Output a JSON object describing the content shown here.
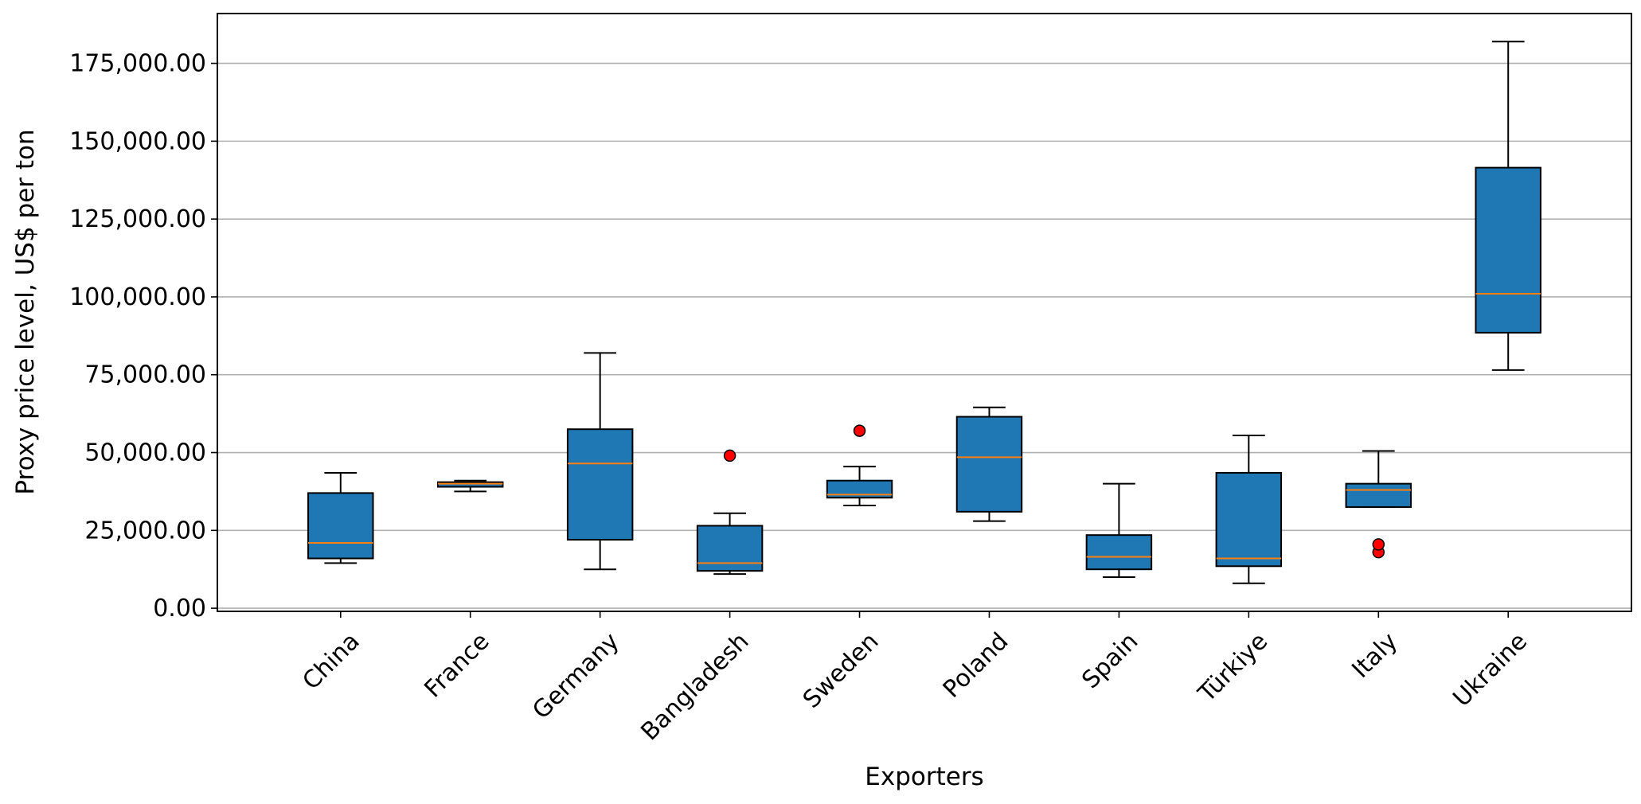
{
  "chart_data": {
    "type": "box",
    "title": "",
    "xlabel": "Exporters",
    "ylabel": "Proxy price level, US$ per ton",
    "ylim": [
      -1000,
      191000
    ],
    "yticks": [
      0,
      25000,
      50000,
      75000,
      100000,
      125000,
      150000,
      175000
    ],
    "ytick_labels": [
      "0.00",
      "25,000.00",
      "50,000.00",
      "75,000.00",
      "100,000.00",
      "125,000.00",
      "150,000.00",
      "175,000.00"
    ],
    "grid": "horizontal",
    "categories": [
      "China",
      "France",
      "Germany",
      "Bangladesh",
      "Sweden",
      "Poland",
      "Spain",
      "Türkiye",
      "Italy",
      "Ukraine"
    ],
    "box_color": "#1f77b4",
    "median_color": "#ff7f0e",
    "outlier_color": "#ff0000",
    "boxes": [
      {
        "whisker_low": 14500,
        "q1": 16000,
        "median": 21000,
        "q3": 37000,
        "whisker_high": 43500,
        "outliers": []
      },
      {
        "whisker_low": 37500,
        "q1": 39000,
        "median": 40000,
        "q3": 40500,
        "whisker_high": 41000,
        "outliers": []
      },
      {
        "whisker_low": 12500,
        "q1": 22000,
        "median": 46500,
        "q3": 57500,
        "whisker_high": 82000,
        "outliers": []
      },
      {
        "whisker_low": 11000,
        "q1": 12000,
        "median": 14500,
        "q3": 26500,
        "whisker_high": 30500,
        "outliers": [
          49000
        ]
      },
      {
        "whisker_low": 33000,
        "q1": 35500,
        "median": 36500,
        "q3": 41000,
        "whisker_high": 45500,
        "outliers": [
          57000
        ]
      },
      {
        "whisker_low": 28000,
        "q1": 31000,
        "median": 48500,
        "q3": 61500,
        "whisker_high": 64500,
        "outliers": []
      },
      {
        "whisker_low": 10000,
        "q1": 12500,
        "median": 16500,
        "q3": 23500,
        "whisker_high": 40000,
        "outliers": []
      },
      {
        "whisker_low": 8000,
        "q1": 13500,
        "median": 16000,
        "q3": 43500,
        "whisker_high": 55500,
        "outliers": []
      },
      {
        "whisker_low": 32500,
        "q1": 32500,
        "median": 38000,
        "q3": 40000,
        "whisker_high": 50500,
        "outliers": [
          18000,
          20500
        ]
      },
      {
        "whisker_low": 76500,
        "q1": 88500,
        "median": 101000,
        "q3": 141500,
        "whisker_high": 182000,
        "outliers": []
      }
    ]
  }
}
